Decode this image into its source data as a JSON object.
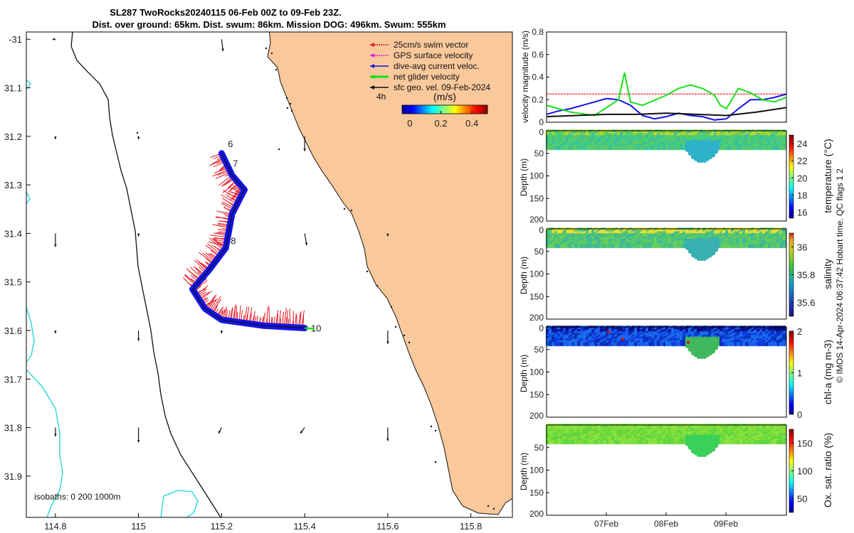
{
  "title_line1": "SL287 TwoRocks20240115 06-Feb 00Z to 09-Feb 23Z.",
  "title_line2": "Dist. over ground: 65km. Dist. swum: 86km. Mission DOG: 496km. Swum: 555km",
  "legend": {
    "items": [
      {
        "label": "25cm/s swim vector",
        "color": "#e8141e"
      },
      {
        "label": "GPS surface velocity",
        "color": "#e01ee0"
      },
      {
        "label": "dive-avg current veloc.",
        "color": "#1414e6"
      },
      {
        "label": "net glider velocity",
        "color": "#18e018"
      },
      {
        "label": "sfc geo. vel. 09-Feb-2024",
        "color": "#111111"
      }
    ],
    "interval_label": "4h",
    "colorbar_title": "(m/s)",
    "colorbar_ticks": [
      "0",
      "0.2",
      "0.4"
    ]
  },
  "isobath_label": "isobaths: 0   200  1000m",
  "colors": {
    "land": "#f9c89b",
    "track_blue": "#1414e6",
    "track_red": "#e8141e",
    "net_green": "#18e018",
    "isobath_200": "#35d8d8"
  },
  "chart_data": [
    {
      "type": "scatter",
      "name": "track_map",
      "xlim": [
        114.73,
        115.9
      ],
      "ylim": [
        -31.985,
        -30.985
      ],
      "x_ticks": [
        "114.8",
        "115",
        "115.2",
        "115.4",
        "115.6",
        "115.8"
      ],
      "x_tick_values": [
        114.8,
        115.0,
        115.2,
        115.4,
        115.6,
        115.8
      ],
      "y_ticks": [
        "-31",
        "31.1",
        "31.2",
        "31.3",
        "31.4",
        "31.5",
        "31.6",
        "31.7",
        "31.8",
        "31.9"
      ],
      "y_tick_values": [
        -31.0,
        -31.1,
        -31.2,
        -31.3,
        -31.4,
        -31.5,
        -31.6,
        -31.7,
        -31.8,
        -31.9
      ],
      "track": [
        [
          115.2,
          -31.235
        ],
        [
          115.225,
          -31.28
        ],
        [
          115.255,
          -31.31
        ],
        [
          115.225,
          -31.36
        ],
        [
          115.21,
          -31.43
        ],
        [
          115.17,
          -31.475
        ],
        [
          115.13,
          -31.515
        ],
        [
          115.16,
          -31.555
        ],
        [
          115.2,
          -31.578
        ],
        [
          115.3,
          -31.59
        ],
        [
          115.4,
          -31.595
        ]
      ],
      "day_labels": [
        {
          "label": "6",
          "lon": 115.215,
          "lat": -31.215
        },
        {
          "label": "7",
          "lon": 115.227,
          "lat": -31.255
        },
        {
          "label": "8",
          "lon": 115.222,
          "lat": -31.415
        },
        {
          "label": "10",
          "lon": 115.415,
          "lat": -31.595
        }
      ],
      "geo_vectors": [
        {
          "lon": 114.8,
          "lat": -31.0,
          "u": -0.01,
          "v": 0.0
        },
        {
          "lon": 115.2,
          "lat": -31.0,
          "u": 0.005,
          "v": -0.04
        },
        {
          "lon": 114.8,
          "lat": -31.2,
          "u": 0.0,
          "v": -0.01
        },
        {
          "lon": 115.0,
          "lat": -31.2,
          "u": 0.0,
          "v": -0.01
        },
        {
          "lon": 115.4,
          "lat": -31.2,
          "u": 0.0,
          "v": -0.05
        },
        {
          "lon": 114.8,
          "lat": -31.4,
          "u": 0.0,
          "v": -0.045
        },
        {
          "lon": 115.0,
          "lat": -31.4,
          "u": 0.0,
          "v": -0.01
        },
        {
          "lon": 115.4,
          "lat": -31.4,
          "u": 0.007,
          "v": -0.04
        },
        {
          "lon": 115.6,
          "lat": -31.4,
          "u": 0.0,
          "v": -0.01
        },
        {
          "lon": 114.8,
          "lat": -31.6,
          "u": 0.0,
          "v": -0.01
        },
        {
          "lon": 115.0,
          "lat": -31.6,
          "u": 0.0,
          "v": -0.035
        },
        {
          "lon": 115.2,
          "lat": -31.6,
          "u": 0.0,
          "v": -0.01
        },
        {
          "lon": 115.6,
          "lat": -31.6,
          "u": 0.0,
          "v": -0.045
        },
        {
          "lon": 114.8,
          "lat": -31.8,
          "u": 0.0,
          "v": -0.03
        },
        {
          "lon": 115.0,
          "lat": -31.8,
          "u": 0.0,
          "v": -0.05
        },
        {
          "lon": 115.2,
          "lat": -31.8,
          "u": -0.01,
          "v": -0.02
        },
        {
          "lon": 115.4,
          "lat": -31.8,
          "u": -0.015,
          "v": -0.02
        },
        {
          "lon": 115.6,
          "lat": -31.8,
          "u": 0.0,
          "v": -0.045
        }
      ]
    },
    {
      "type": "line",
      "name": "velocity_magnitude",
      "ylabel": "velocity magnitude (m/s)",
      "xlim": [
        0,
        4
      ],
      "ylim": [
        0,
        0.8
      ],
      "y_ticks": [
        "0",
        "0.2",
        "0.4",
        "0.6",
        "0.8"
      ],
      "y_tick_values": [
        0,
        0.2,
        0.4,
        0.6,
        0.8
      ],
      "series": [
        {
          "color": "#e8141e",
          "x": [
            0,
            4
          ],
          "y": [
            0.25,
            0.25
          ]
        },
        {
          "color": "#1414e6",
          "x": [
            0,
            0.2,
            0.4,
            0.6,
            0.8,
            1.0,
            1.2,
            1.4,
            1.6,
            1.8,
            2.0,
            2.2,
            2.4,
            2.6,
            2.8,
            3.0,
            3.2,
            3.4,
            3.6,
            3.8,
            4.0
          ],
          "y": [
            0.07,
            0.1,
            0.12,
            0.15,
            0.18,
            0.21,
            0.2,
            0.15,
            0.06,
            0.03,
            0.05,
            0.08,
            0.06,
            0.05,
            0.02,
            0.03,
            0.12,
            0.2,
            0.2,
            0.22,
            0.25
          ]
        },
        {
          "color": "#18e018",
          "x": [
            0,
            0.4,
            0.8,
            1.0,
            1.2,
            1.3,
            1.4,
            1.6,
            2.0,
            2.2,
            2.4,
            2.6,
            2.8,
            2.9,
            3.0,
            3.2,
            3.4,
            3.6,
            3.8,
            4.0
          ],
          "y": [
            0.15,
            0.09,
            0.06,
            0.13,
            0.2,
            0.44,
            0.18,
            0.15,
            0.24,
            0.3,
            0.33,
            0.3,
            0.24,
            0.15,
            0.12,
            0.3,
            0.26,
            0.2,
            0.18,
            0.22
          ]
        },
        {
          "color": "#111111",
          "x": [
            0,
            0.5,
            1.0,
            1.5,
            2.0,
            2.5,
            3.0,
            3.5,
            4.0
          ],
          "y": [
            0.05,
            0.06,
            0.07,
            0.07,
            0.08,
            0.07,
            0.06,
            0.09,
            0.13
          ]
        }
      ]
    },
    {
      "type": "heatmap",
      "name": "temperature_section",
      "ylabel": "Depth (m)",
      "ylim": [
        0,
        200
      ],
      "y_ticks": [
        "0",
        "50",
        "100",
        "150",
        "200"
      ],
      "colorbar_label": "temperature (°C)",
      "colorbar_ticks": [
        "16",
        "18",
        "20",
        "22",
        "24"
      ],
      "clim": [
        15.3,
        25
      ]
    },
    {
      "type": "heatmap",
      "name": "salinity_section",
      "ylabel": "Depth (m)",
      "ylim": [
        0,
        200
      ],
      "y_ticks": [
        "0",
        "50",
        "100",
        "150",
        "200"
      ],
      "colorbar_label": "salinity",
      "colorbar_ticks": [
        "35.6",
        "35.8",
        "36"
      ],
      "clim": [
        35.5,
        36.1
      ]
    },
    {
      "type": "heatmap",
      "name": "chla_section",
      "ylabel": "Depth (m)",
      "ylim": [
        0,
        200
      ],
      "y_ticks": [
        "0",
        "50",
        "100",
        "150",
        "200"
      ],
      "colorbar_label": "chl-a (mg m-3)",
      "colorbar_ticks": [
        "0",
        "1",
        "2"
      ],
      "clim": [
        0,
        2
      ]
    },
    {
      "type": "heatmap",
      "name": "oxygen_section",
      "ylabel": "Depth (m)",
      "ylim": [
        0,
        200
      ],
      "y_ticks": [
        "50",
        "100",
        "150",
        "200"
      ],
      "colorbar_label": "Ox. sat. ratio (%)",
      "colorbar_ticks": [
        "50",
        "100",
        "150"
      ],
      "clim": [
        25,
        175
      ]
    }
  ],
  "x_date_ticks": [
    "07Feb",
    "08Feb",
    "09Feb"
  ],
  "side_note": "© IMOS 14-Apr-2024 06:37:42 Hobart time. QC flags 1  2"
}
